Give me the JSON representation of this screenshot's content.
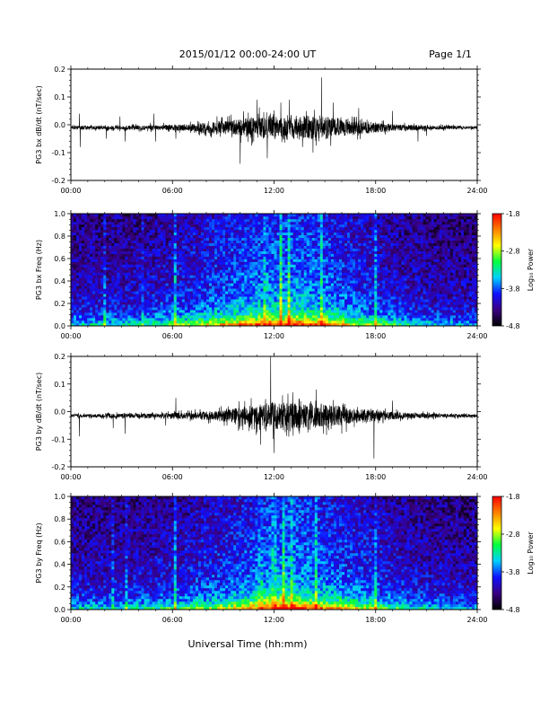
{
  "header": {
    "date_range": "2015/01/12  00:00-24:00 UT",
    "page": "Page 1/1"
  },
  "x_axis_label": "Universal Time (hh:mm)",
  "colorbar": {
    "label": "Log₁₀ Power",
    "ticks": [
      "-1.8",
      "-2.8",
      "-3.8",
      "-4.8"
    ],
    "min": -4.8,
    "max": -1.8,
    "colors": [
      "#000000",
      "#3a0080",
      "#1010ff",
      "#00d0ff",
      "#00ff40",
      "#ffff00",
      "#ff8000",
      "#ff0000"
    ]
  },
  "chart_data": [
    {
      "type": "line",
      "ylabel": "PG3 bx dB/dt (nT/sec)",
      "xlim": [
        0,
        24
      ],
      "ylim": [
        -0.2,
        0.2
      ],
      "x_ticks": [
        "00:00",
        "06:00",
        "12:00",
        "18:00",
        "24:00"
      ],
      "y_ticks": [
        "0.2",
        "0.1",
        "0.0",
        "-0.1",
        "-0.2"
      ],
      "baseline": -0.01,
      "activity_envelope": [
        [
          0,
          0.006
        ],
        [
          4,
          0.008
        ],
        [
          7,
          0.012
        ],
        [
          9,
          0.025
        ],
        [
          11,
          0.04
        ],
        [
          13,
          0.045
        ],
        [
          15,
          0.04
        ],
        [
          17,
          0.025
        ],
        [
          19,
          0.012
        ],
        [
          21,
          0.008
        ],
        [
          24,
          0.005
        ]
      ],
      "spikes": [
        [
          0.5,
          0.04
        ],
        [
          0.55,
          -0.08
        ],
        [
          2.1,
          -0.05
        ],
        [
          2.9,
          0.03
        ],
        [
          3.2,
          -0.06
        ],
        [
          4.9,
          0.04
        ],
        [
          5.0,
          -0.06
        ],
        [
          6.2,
          -0.05
        ],
        [
          10.0,
          -0.14
        ],
        [
          11.0,
          0.09
        ],
        [
          11.6,
          -0.12
        ],
        [
          12.4,
          0.08
        ],
        [
          12.9,
          0.09
        ],
        [
          14.3,
          -0.1
        ],
        [
          14.8,
          0.17
        ],
        [
          15.5,
          0.08
        ],
        [
          17.0,
          0.06
        ],
        [
          19.0,
          0.05
        ],
        [
          20.5,
          -0.06
        ],
        [
          21.0,
          -0.04
        ]
      ]
    },
    {
      "type": "heatmap",
      "ylabel": "PG3 bx Freq (Hz)",
      "xlim": [
        0,
        24
      ],
      "ylim": [
        0.0,
        1.0
      ],
      "x_ticks": [
        "00:00",
        "06:00",
        "12:00",
        "18:00",
        "24:00"
      ],
      "y_ticks": [
        "1.0",
        "0.8",
        "0.6",
        "0.4",
        "0.2",
        "0.0"
      ],
      "activity_envelope": [
        [
          0,
          0.35
        ],
        [
          4,
          0.4
        ],
        [
          7,
          0.55
        ],
        [
          9,
          0.7
        ],
        [
          11,
          0.85
        ],
        [
          13,
          0.9
        ],
        [
          15,
          0.8
        ],
        [
          17,
          0.6
        ],
        [
          19,
          0.45
        ],
        [
          21,
          0.35
        ],
        [
          24,
          0.3
        ]
      ],
      "bright_columns": [
        [
          6.2,
          0.9
        ],
        [
          11.5,
          0.7
        ],
        [
          12.4,
          0.75
        ],
        [
          12.9,
          0.8
        ],
        [
          14.8,
          0.6
        ],
        [
          18.0,
          0.6
        ],
        [
          2.0,
          0.4
        ],
        [
          4.2,
          0.4
        ]
      ]
    },
    {
      "type": "line",
      "ylabel": "PG3 by dB/dt (nT/sec)",
      "xlim": [
        0,
        24
      ],
      "ylim": [
        -0.2,
        0.2
      ],
      "x_ticks": [
        "00:00",
        "06:00",
        "12:00",
        "18:00",
        "24:00"
      ],
      "y_ticks": [
        "0.2",
        "0.1",
        "0.0",
        "-0.1",
        "-0.2"
      ],
      "baseline": -0.015,
      "activity_envelope": [
        [
          0,
          0.006
        ],
        [
          4,
          0.008
        ],
        [
          7,
          0.012
        ],
        [
          9,
          0.02
        ],
        [
          11,
          0.04
        ],
        [
          12,
          0.05
        ],
        [
          14,
          0.045
        ],
        [
          16,
          0.035
        ],
        [
          18,
          0.02
        ],
        [
          20,
          0.01
        ],
        [
          24,
          0.005
        ]
      ],
      "spikes": [
        [
          0.5,
          -0.09
        ],
        [
          2.5,
          -0.06
        ],
        [
          3.2,
          -0.08
        ],
        [
          5.6,
          -0.05
        ],
        [
          6.2,
          0.05
        ],
        [
          9.9,
          -0.07
        ],
        [
          11.2,
          -0.12
        ],
        [
          11.8,
          0.2
        ],
        [
          12.0,
          -0.15
        ],
        [
          13.1,
          0.07
        ],
        [
          14.5,
          0.08
        ],
        [
          16.0,
          -0.08
        ],
        [
          17.9,
          -0.17
        ],
        [
          19.0,
          0.04
        ]
      ]
    },
    {
      "type": "heatmap",
      "ylabel": "PG3 by Freq (Hz)",
      "xlim": [
        0,
        24
      ],
      "ylim": [
        0.0,
        1.0
      ],
      "x_ticks": [
        "00:00",
        "06:00",
        "12:00",
        "18:00",
        "24:00"
      ],
      "y_ticks": [
        "1.0",
        "0.8",
        "0.6",
        "0.4",
        "0.2",
        "0.0"
      ],
      "activity_envelope": [
        [
          0,
          0.35
        ],
        [
          4,
          0.4
        ],
        [
          7,
          0.5
        ],
        [
          9,
          0.6
        ],
        [
          11,
          0.8
        ],
        [
          12.5,
          0.95
        ],
        [
          14,
          0.85
        ],
        [
          16,
          0.7
        ],
        [
          18,
          0.55
        ],
        [
          20,
          0.4
        ],
        [
          24,
          0.3
        ]
      ],
      "bright_columns": [
        [
          6.2,
          0.85
        ],
        [
          11.2,
          0.6
        ],
        [
          12.0,
          0.8
        ],
        [
          12.6,
          0.9
        ],
        [
          13.1,
          0.8
        ],
        [
          14.5,
          0.6
        ],
        [
          18.0,
          0.5
        ],
        [
          2.5,
          0.4
        ],
        [
          3.3,
          0.4
        ]
      ]
    }
  ]
}
